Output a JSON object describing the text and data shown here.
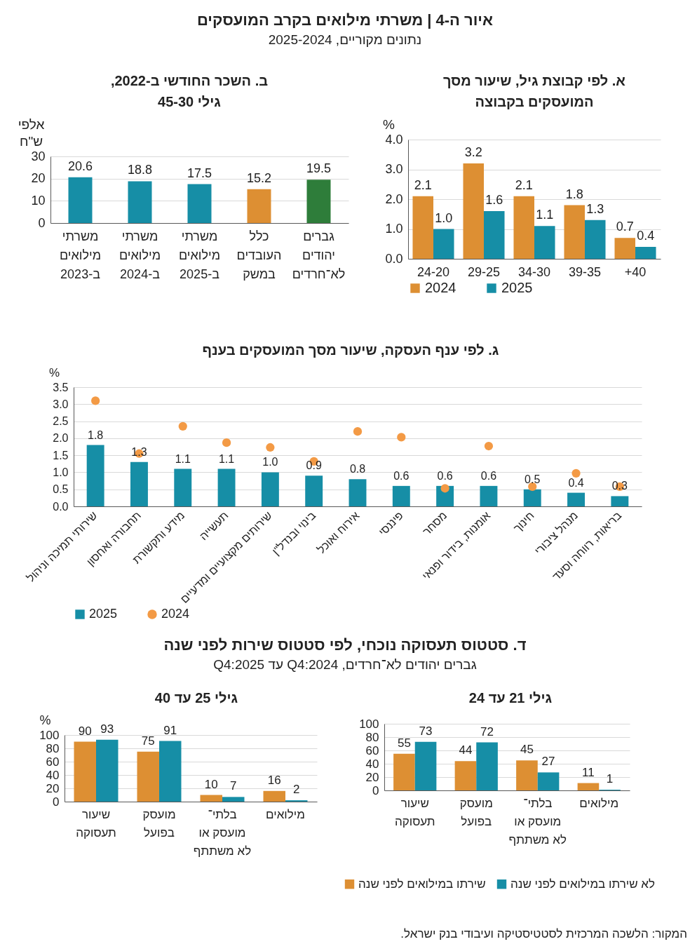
{
  "chart_data": [
    {
      "type": "other",
      "title": "איור ה-4 | משרתי מילואים בקרב המועסקים",
      "subtitle": "נתונים מקוריים, 2025-2024"
    },
    {
      "type": "bar",
      "title": "א. לפי קבוצת גיל, שיעור מסך המועסקים בקבוצה",
      "ylabel": "%",
      "categories": [
        "24-20",
        "29-25",
        "34-30",
        "39-35",
        "+40"
      ],
      "series": [
        {
          "name": "2024",
          "color": "#dd8f33",
          "values": [
            2.1,
            3.2,
            2.1,
            1.8,
            0.7
          ],
          "value_labels": [
            "2.1",
            "3.2",
            "2.1",
            "1.8",
            "0.7"
          ]
        },
        {
          "name": "2025",
          "color": "#168ea6",
          "values": [
            1.0,
            1.6,
            1.1,
            1.3,
            0.4
          ],
          "value_labels": [
            "1.0",
            "1.6",
            "1.1",
            "1.3",
            "0.4"
          ]
        }
      ],
      "ylim": [
        0,
        4
      ],
      "yticks": [
        {
          "value": 0,
          "label": "0.0"
        },
        {
          "value": 1,
          "label": "1.0"
        },
        {
          "value": 2,
          "label": "2.0"
        },
        {
          "value": 3,
          "label": "3.0"
        },
        {
          "value": 4,
          "label": "4.0"
        }
      ],
      "grid": "y",
      "legend": "bottom"
    },
    {
      "type": "bar",
      "title": "ב. השכר החודשי ב-2022, גילי 45-30",
      "ylabel": "אלפי ש\"ח",
      "categories": [
        "משרתי מילואים ב-2023",
        "משרתי מילואים ב-2024",
        "משרתי מילואים ב-2025",
        "כלל העובדים במשק",
        "גברים יהודים לא־חרדים"
      ],
      "values": [
        20.6,
        18.8,
        17.5,
        15.2,
        19.5
      ],
      "colors": [
        "#168ea6",
        "#168ea6",
        "#168ea6",
        "#dd8f33",
        "#2e7d3a"
      ],
      "ylim": [
        0,
        30
      ],
      "yticks": [
        0,
        10,
        20,
        30
      ],
      "data_labels": true,
      "grid": "y"
    },
    {
      "type": "bar",
      "title": "ג. לפי ענף העסקה, שיעור מסך המועסקים בענף",
      "ylabel": "%",
      "categories": [
        "שירותי תמיכה וניהול",
        "תחבורה ואחסון",
        "מידע ותקשורת",
        "תעשייה",
        "שירותים מקצועיים ומדעיים",
        "בינוי ובנדל\"ן",
        "אירוח ואוכל",
        "פיננסי",
        "מסחר",
        "אומנות, בידור ופנאי",
        "חינוך",
        "מנהל ציבורי",
        "בריאות, רווחה וסעד"
      ],
      "series": [
        {
          "name": "2025",
          "type": "bar",
          "color": "#168ea6",
          "values": [
            1.8,
            1.3,
            1.1,
            1.1,
            1.0,
            0.9,
            0.8,
            0.6,
            0.6,
            0.6,
            0.5,
            0.4,
            0.3
          ],
          "value_labels": [
            "1.8",
            "1.3",
            "1.1",
            "1.1",
            "1.0",
            "0.9",
            "0.8",
            "0.6",
            "0.6",
            "0.6",
            "0.5",
            "0.4",
            "0.3"
          ]
        },
        {
          "name": "2024",
          "type": "scatter",
          "color": "#f39a45",
          "values": [
            3.1,
            1.55,
            2.35,
            1.87,
            1.73,
            1.32,
            2.2,
            2.03,
            0.53,
            1.77,
            0.58,
            0.97,
            0.58
          ]
        }
      ],
      "ylim": [
        0,
        3.5
      ],
      "yticks": [
        {
          "value": 0,
          "label": "0.0"
        },
        0.5,
        {
          "value": 1,
          "label": "1.0"
        },
        1.5,
        {
          "value": 2,
          "label": "2.0"
        },
        2.5,
        {
          "value": 3,
          "label": "3.0"
        },
        3.5
      ],
      "grid": "y",
      "legend": "bottom",
      "marker": "circle"
    },
    {
      "type": "other",
      "title": "ד. סטטוס תעסוקה נוכחי, לפי סטטוס שירות לפני שנה",
      "subtitle": "גברים יהודים לא־חרדים, 2024:Q4 עד 2025:Q4"
    },
    {
      "type": "bar",
      "title": "גילי 21 עד 24",
      "categories": [
        "שיעור תעסוקה",
        "מועסק בפועל",
        "בלתי־מועסק או לא משתתף",
        "מילואים"
      ],
      "series": [
        {
          "name": "שירתו במילואים לפני שנה",
          "color": "#dd8f33",
          "values": [
            55,
            44,
            45,
            11
          ]
        },
        {
          "name": "לא שירתו במילואים לפני שנה",
          "color": "#168ea6",
          "values": [
            73,
            72,
            27,
            1
          ]
        }
      ],
      "ylim": [
        0,
        100
      ],
      "yticks": [
        0,
        20,
        40,
        60,
        80,
        100
      ],
      "data_labels": true,
      "grid": "y",
      "legend": "bottom"
    },
    {
      "type": "bar",
      "title": "גילי 25 עד 40",
      "ylabel": "%",
      "categories": [
        "שיעור תעסוקה",
        "מועסק בפועל",
        "בלתי־מועסק או לא משתתף",
        "מילואים"
      ],
      "series": [
        {
          "color": "#dd8f33",
          "values": [
            90,
            75,
            10,
            16
          ]
        },
        {
          "color": "#168ea6",
          "values": [
            93,
            91,
            7,
            2
          ]
        }
      ],
      "ylim": [
        0,
        100
      ],
      "yticks": [
        0,
        20,
        40,
        60,
        80,
        100
      ],
      "data_labels": true,
      "grid": "y"
    },
    {
      "type": "other",
      "annotations": [
        "המקור: הלשכה המרכזית לסטטיסטיקה ועיבודי בנק ישראל."
      ]
    }
  ]
}
